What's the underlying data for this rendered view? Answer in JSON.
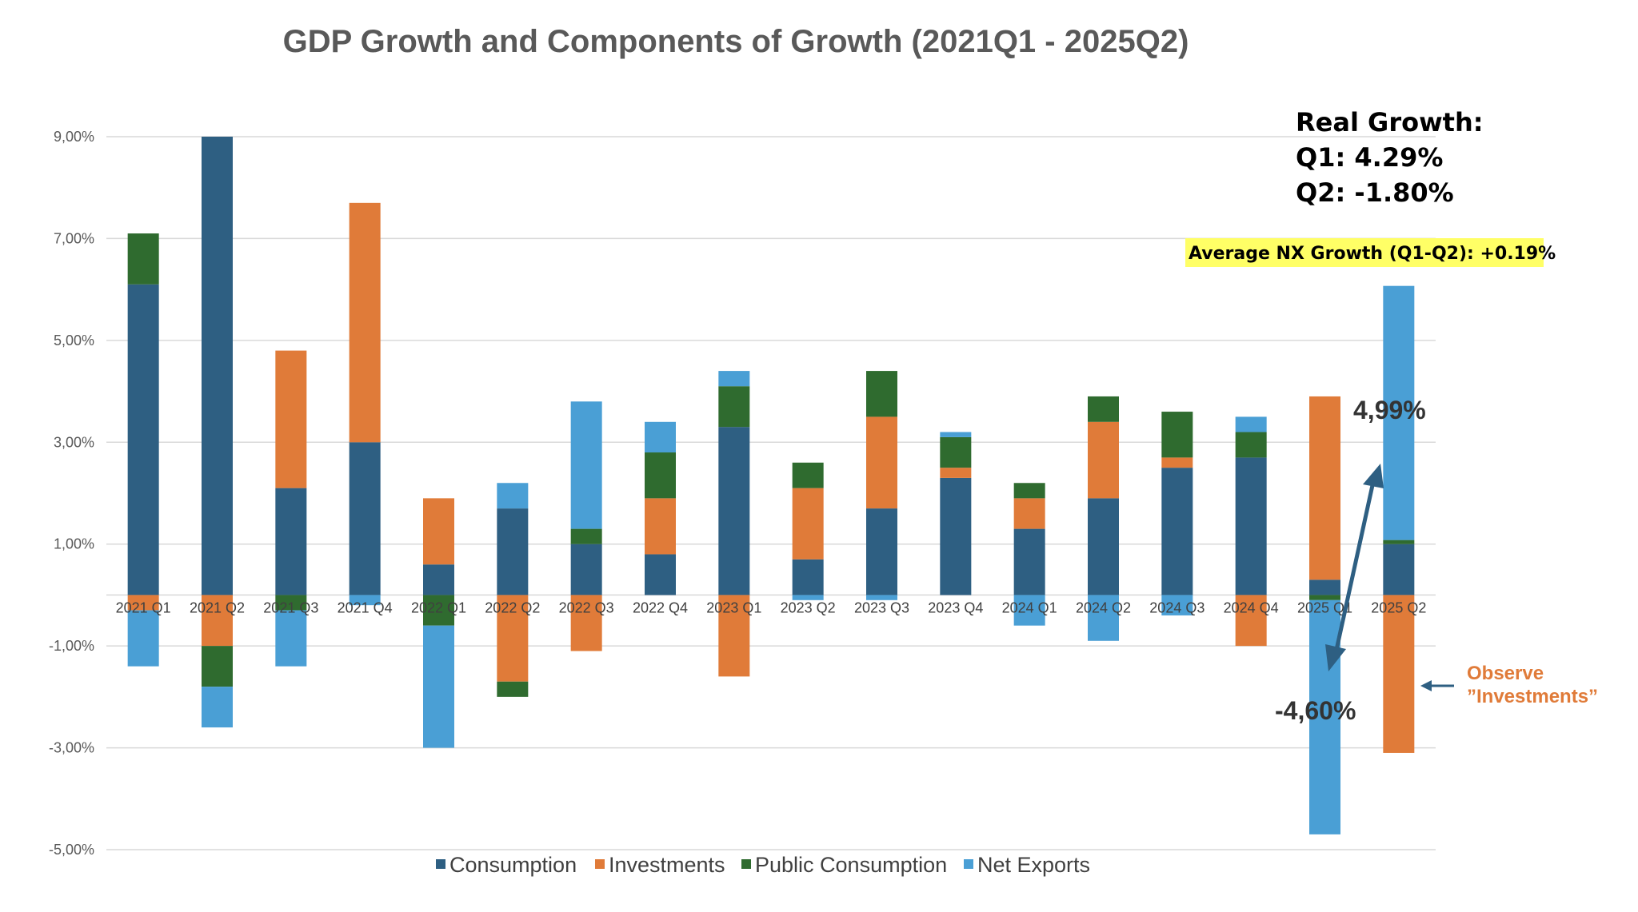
{
  "chart_data": {
    "type": "bar",
    "stacked": true,
    "title": "GDP Growth and Components of Growth (2021Q1 - 2025Q2)",
    "categories": [
      "2021 Q1",
      "2021 Q2",
      "2021 Q3",
      "2021 Q4",
      "2022 Q1",
      "2022 Q2",
      "2022 Q3",
      "2022 Q4",
      "2023 Q1",
      "2023 Q2",
      "2023 Q3",
      "2023 Q4",
      "2024 Q1",
      "2024 Q2",
      "2024 Q3",
      "2024 Q4",
      "2025 Q1",
      "2025 Q2"
    ],
    "series": [
      {
        "name": "Consumption",
        "color": "#2E5F82",
        "values": [
          6.1,
          9.0,
          2.1,
          3.0,
          0.6,
          1.7,
          1.0,
          0.8,
          3.3,
          0.7,
          1.7,
          2.3,
          1.3,
          1.9,
          2.5,
          2.7,
          0.3,
          1.0
        ]
      },
      {
        "name": "Investments",
        "color": "#E07B39",
        "values": [
          -0.3,
          -1.0,
          2.7,
          4.7,
          1.3,
          -1.7,
          -1.1,
          1.1,
          -1.6,
          1.4,
          1.8,
          0.2,
          0.6,
          1.5,
          0.2,
          -1.0,
          3.6,
          -3.1
        ]
      },
      {
        "name": "Public Consumption",
        "color": "#2F6B2F",
        "values": [
          1.0,
          -0.8,
          -0.3,
          0.0,
          -0.6,
          -0.3,
          0.3,
          0.9,
          0.8,
          0.5,
          0.9,
          0.6,
          0.3,
          0.5,
          0.9,
          0.5,
          -0.1,
          0.08
        ]
      },
      {
        "name": "Net Exports",
        "color": "#4A9FD5",
        "values": [
          -1.1,
          -0.8,
          -1.1,
          -0.2,
          -2.4,
          0.5,
          2.5,
          0.6,
          0.3,
          -0.1,
          -0.1,
          0.1,
          -0.6,
          -0.9,
          -0.4,
          0.3,
          -4.6,
          4.99
        ]
      }
    ],
    "ylim": [
      -5.0,
      9.0
    ],
    "yticks": [
      9.0,
      7.0,
      5.0,
      3.0,
      1.0,
      -1.0,
      -3.0,
      -5.0
    ],
    "ytick_labels": [
      "9,00%",
      "7,00%",
      "5,00%",
      "3,00%",
      "1,00%",
      "-1,00%",
      "-3,00%",
      "-5,00%"
    ],
    "grid": true,
    "legend_position": "bottom",
    "xlabel": "",
    "ylabel": "",
    "annotations": {
      "real_growth_heading": "Real Growth:",
      "real_growth_q1": "Q1: 4.29%",
      "real_growth_q2": "Q2: -1.80%",
      "nx_average": "Average NX Growth (Q1-Q2): +0.19%",
      "q2_nx_label": "4,99%",
      "q1_nx_label": "-4,60%",
      "observe_line1": "Observe",
      "observe_line2": "”Investments”"
    },
    "colors": {
      "highlight": "#FFFF66",
      "arrow": "#2E5F82",
      "grid": "#D9D9D9"
    }
  }
}
